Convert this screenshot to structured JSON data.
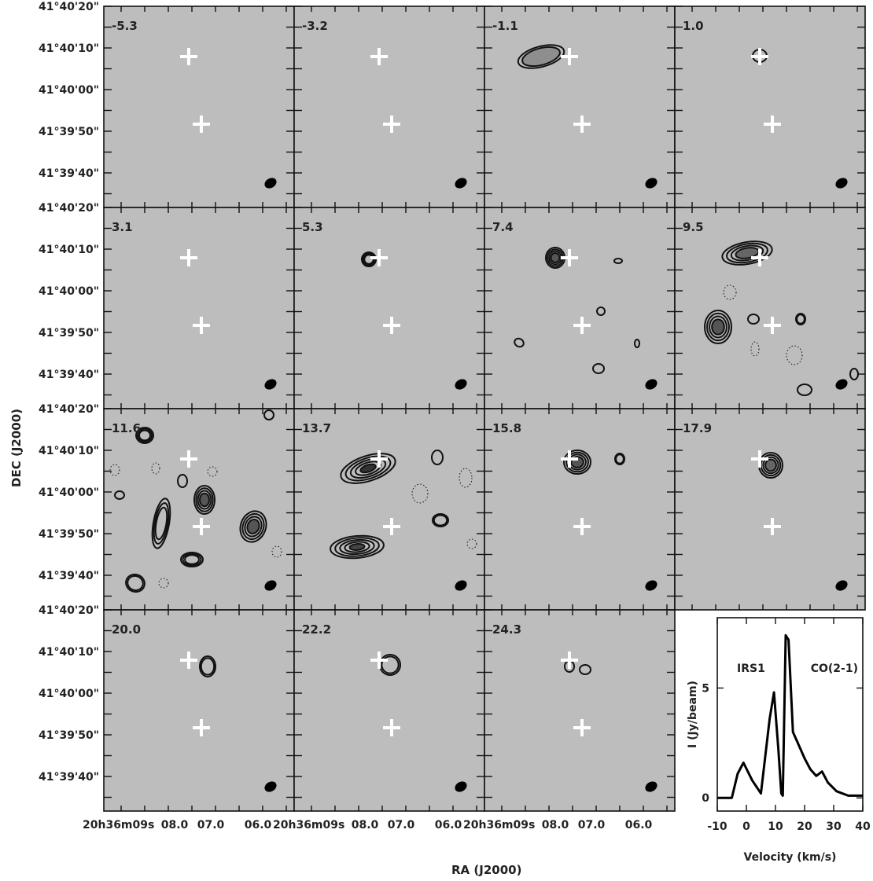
{
  "figure": {
    "ylabel": "DEC (J2000)",
    "xlabel": "RA (J2000)",
    "dec_ticks": [
      "41°40'20\"",
      "41°40'10\"",
      "41°40'00\"",
      "41°39'50\"",
      "41°39'40\""
    ],
    "ra_ticks": [
      "20h36m09s",
      "08.0",
      "07.0",
      "06.0"
    ],
    "channels": [
      {
        "velocity": "-5.3"
      },
      {
        "velocity": "-3.2"
      },
      {
        "velocity": "-1.1"
      },
      {
        "velocity": "1.0"
      },
      {
        "velocity": "3.1"
      },
      {
        "velocity": "5.3"
      },
      {
        "velocity": "7.4"
      },
      {
        "velocity": "9.5"
      },
      {
        "velocity": "11.6"
      },
      {
        "velocity": "13.7"
      },
      {
        "velocity": "15.8"
      },
      {
        "velocity": "17.9"
      },
      {
        "velocity": "20.0"
      },
      {
        "velocity": "22.2"
      },
      {
        "velocity": "24.3"
      }
    ],
    "colors": {
      "map_background": "#bdbdbd",
      "contour": "#111111",
      "marker": "#ffffff"
    }
  },
  "chart_data": {
    "type": "line",
    "title": "",
    "source_label": "IRS1",
    "line_label": "CO(2-1)",
    "xlabel": "Velocity (km/s)",
    "ylabel": "I (Jy/beam)",
    "xlim": [
      -10,
      40
    ],
    "ylim": [
      -0.6,
      8.2
    ],
    "xticks": [
      -10,
      0,
      10,
      20,
      30,
      40
    ],
    "yticks": [
      0,
      5
    ],
    "x": [
      -14,
      -5,
      -3,
      -1,
      2,
      5,
      8,
      9.5,
      11,
      12,
      12.5,
      13.5,
      14.5,
      16,
      18,
      20,
      22,
      24,
      26,
      28,
      31,
      35,
      40
    ],
    "y": [
      0,
      0,
      1.1,
      1.6,
      0.8,
      0.2,
      3.6,
      4.8,
      2.2,
      0.2,
      0.1,
      7.4,
      7.2,
      3.0,
      2.4,
      1.8,
      1.3,
      1.0,
      1.2,
      0.7,
      0.3,
      0.1,
      0.1
    ]
  }
}
